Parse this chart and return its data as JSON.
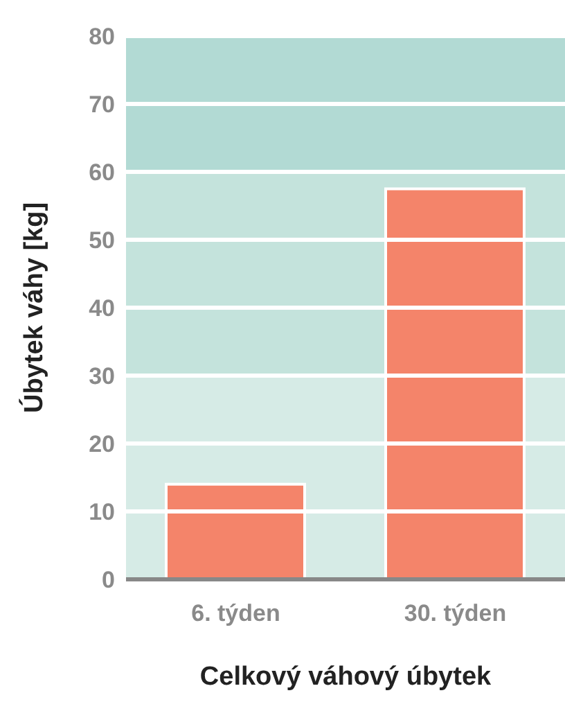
{
  "chart_data": {
    "type": "bar",
    "xlabel": "Celkový váhový úbytek",
    "ylabel": "Úbytek váhy [kg]",
    "categories": [
      "6. týden",
      "30. týden"
    ],
    "values": [
      14,
      57.5
    ],
    "color": "#f4846a",
    "ylim": [
      0,
      80
    ],
    "yticks": [
      0,
      10,
      20,
      30,
      40,
      50,
      60,
      70,
      80
    ],
    "grid": "y",
    "bands": [
      {
        "axis": "y",
        "from": 0,
        "to": 30,
        "color": "#d6ebe6"
      },
      {
        "axis": "y",
        "from": 30,
        "to": 60,
        "color": "#c4e3dc"
      },
      {
        "axis": "y",
        "from": 60,
        "to": 80,
        "color": "#b2dad4"
      }
    ]
  }
}
